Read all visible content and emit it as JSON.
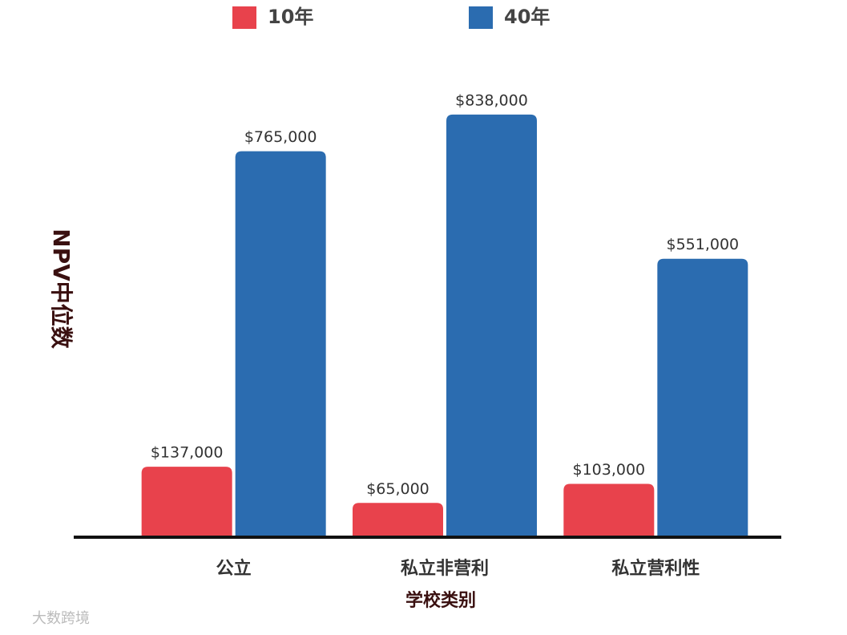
{
  "chart_data": {
    "type": "bar",
    "categories": [
      "公立",
      "私立非营利",
      "私立营利性"
    ],
    "series": [
      {
        "name": "10年",
        "color": "#e8424c",
        "values": [
          137000,
          65000,
          103000
        ],
        "value_labels": [
          "$137,000",
          "$65,000",
          "$103,000"
        ]
      },
      {
        "name": "40年",
        "color": "#2b6cb0",
        "values": [
          765000,
          838000,
          551000
        ],
        "value_labels": [
          "$765,000",
          "$838,000",
          "$551,000"
        ]
      }
    ],
    "x_label": "学校类别",
    "y_label": "NPV中位数",
    "ylim": [
      0,
      900000
    ],
    "legend": "top",
    "watermark": "大数跨境"
  }
}
